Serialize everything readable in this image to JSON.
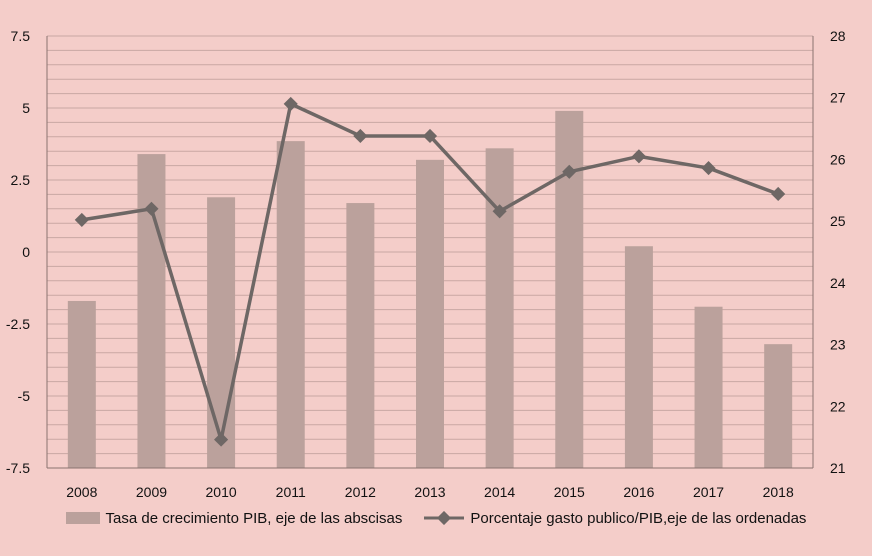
{
  "chart_data": {
    "type": "bar+line",
    "categories": [
      "2008",
      "2009",
      "2010",
      "2011",
      "2012",
      "2013",
      "2014",
      "2015",
      "2016",
      "2017",
      "2018"
    ],
    "series": [
      {
        "name": "Tasa de crecimiento PIB, eje de las abscisas",
        "type": "bar",
        "axis": "left",
        "values": [
          -1.7,
          3.4,
          1.9,
          3.85,
          1.7,
          3.2,
          3.6,
          4.9,
          0.2,
          -1.9,
          -3.2
        ]
      },
      {
        "name": "Porcentaje gasto publico/PIB,eje de las ordenadas",
        "type": "line",
        "axis": "right",
        "values": [
          25.02,
          25.2,
          21.46,
          26.9,
          26.38,
          26.38,
          25.16,
          25.8,
          26.05,
          25.86,
          25.44
        ]
      }
    ],
    "y_left": {
      "ylim": [
        -7.5,
        7.5
      ],
      "ticks": [
        7.5,
        5,
        2.5,
        0,
        -2.5,
        -5,
        -7.5
      ],
      "tick_labels": [
        "7.5",
        "5",
        "2.5",
        "0",
        "-2.5",
        "-5",
        "-7.5"
      ]
    },
    "y_right": {
      "ylim": [
        21,
        28
      ],
      "ticks": [
        28,
        27,
        26,
        25,
        24,
        23,
        22,
        21
      ],
      "tick_labels": [
        "28",
        "27",
        "26",
        "25",
        "24",
        "23",
        "22",
        "21"
      ]
    },
    "grid": true,
    "legend_position": "bottom",
    "title": "",
    "xlabel": "",
    "ylabel": "",
    "colors": {
      "background": "#f4cdc9",
      "bar": "#bba19c",
      "line": "#6e6765",
      "grid": "#c9a7a3",
      "axis": "#8a7370"
    }
  }
}
